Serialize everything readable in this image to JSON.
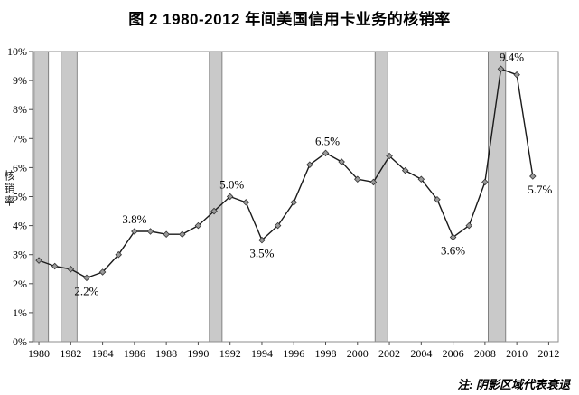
{
  "page": {
    "title": "图 2 1980-2012 年间美国信用卡业务的核销率",
    "note": "注: 阴影区域代表衰退"
  },
  "chart_data": {
    "type": "line",
    "title": "图 2 1980-2012 年间美国信用卡业务的核销率",
    "xlabel": "",
    "ylabel": "核销率",
    "series_name": "美国信用卡业务核销率",
    "x_range": [
      1979.6,
      2012.6
    ],
    "ylim": [
      0,
      10
    ],
    "grid": "off",
    "legend": "none",
    "y_ticks": [
      "0%",
      "1%",
      "2%",
      "3%",
      "4%",
      "5%",
      "6%",
      "7%",
      "8%",
      "9%",
      "10%"
    ],
    "x_ticks": [
      "1980",
      "1982",
      "1984",
      "1986",
      "1988",
      "1990",
      "1992",
      "1994",
      "1996",
      "1998",
      "2000",
      "2002",
      "2004",
      "2006",
      "2008",
      "2010",
      "2012"
    ],
    "years": [
      1980,
      1981,
      1982,
      1983,
      1984,
      1985,
      1986,
      1987,
      1988,
      1989,
      1990,
      1991,
      1992,
      1993,
      1994,
      1995,
      1996,
      1997,
      1998,
      1999,
      2000,
      2001,
      2002,
      2003,
      2004,
      2005,
      2006,
      2007,
      2008,
      2009,
      2010,
      2011
    ],
    "values": [
      2.8,
      2.6,
      2.5,
      2.2,
      2.4,
      3.0,
      3.8,
      3.8,
      3.7,
      3.7,
      4.0,
      4.5,
      5.0,
      4.8,
      3.5,
      4.0,
      4.8,
      6.1,
      6.5,
      6.2,
      5.6,
      5.5,
      6.4,
      5.9,
      5.6,
      4.9,
      3.6,
      4.0,
      5.5,
      9.4,
      9.2,
      5.7
    ],
    "annotations": [
      {
        "year": 1983,
        "value": 2.2,
        "label": "2.2%",
        "placement": "below",
        "dx": 0
      },
      {
        "year": 1986,
        "value": 3.8,
        "label": "3.8%",
        "placement": "above",
        "dx": 0
      },
      {
        "year": 1992,
        "value": 5.0,
        "label": "5.0%",
        "placement": "above",
        "dx": 2
      },
      {
        "year": 1994,
        "value": 3.5,
        "label": "3.5%",
        "placement": "below",
        "dx": 0
      },
      {
        "year": 1998,
        "value": 6.5,
        "label": "6.5%",
        "placement": "above",
        "dx": 2
      },
      {
        "year": 2006,
        "value": 3.6,
        "label": "3.6%",
        "placement": "below",
        "dx": 0
      },
      {
        "year": 2009,
        "value": 9.4,
        "label": "9.4%",
        "placement": "above",
        "dx": 12
      },
      {
        "year": 2011,
        "value": 5.7,
        "label": "5.7%",
        "placement": "below",
        "dx": 8
      }
    ],
    "recession_bands": [
      [
        1979.7,
        1980.6
      ],
      [
        1981.4,
        1982.4
      ],
      [
        1990.7,
        1991.5
      ],
      [
        2001.1,
        2001.9
      ],
      [
        2008.2,
        2009.3
      ]
    ],
    "band_meaning": "阴影区域代表衰退",
    "colors": {
      "line": "#1a1a1a",
      "marker_fill": "#9a9a9a",
      "marker_stroke": "#333333",
      "band_fill": "#c9c9c9",
      "band_stroke": "#6e6e6e",
      "axis": "#4d4d4d",
      "frame": "#8c8c8c"
    }
  }
}
